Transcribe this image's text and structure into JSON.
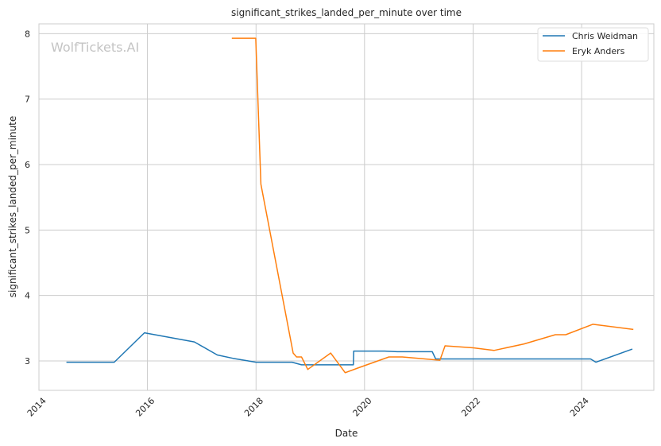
{
  "chart_data": {
    "type": "line",
    "title": "significant_strikes_landed_per_minute over time",
    "xlabel": "Date",
    "ylabel": "significant_strikes_landed_per_minute",
    "watermark": "WolfTickets.AI",
    "xlim": [
      "2014-01-01",
      "2025-05-01"
    ],
    "ylim": [
      2.55,
      8.15
    ],
    "x_ticks": [
      "2014",
      "2016",
      "2018",
      "2020",
      "2022",
      "2024"
    ],
    "y_ticks": [
      "3",
      "4",
      "5",
      "6",
      "7",
      "8"
    ],
    "grid": true,
    "legend_position": "top-right",
    "series": [
      {
        "name": "Chris Weidman",
        "color": "#1f77b4",
        "points": [
          [
            "2014-07-05",
            2.98
          ],
          [
            "2015-05-23",
            2.98
          ],
          [
            "2015-12-12",
            3.43
          ],
          [
            "2016-11-12",
            3.29
          ],
          [
            "2017-04-15",
            3.09
          ],
          [
            "2017-07-29",
            3.04
          ],
          [
            "2018-01-01",
            2.98
          ],
          [
            "2018-09-01",
            2.98
          ],
          [
            "2018-11-03",
            2.94
          ],
          [
            "2019-10-18",
            2.94
          ],
          [
            "2019-10-20",
            3.15
          ],
          [
            "2020-05-15",
            3.15
          ],
          [
            "2020-08-08",
            3.14
          ],
          [
            "2021-04-01",
            3.14
          ],
          [
            "2021-04-24",
            3.03
          ],
          [
            "2024-03-01",
            3.03
          ],
          [
            "2024-04-06",
            2.98
          ],
          [
            "2024-12-07",
            3.18
          ]
        ]
      },
      {
        "name": "Eryk Anders",
        "color": "#ff7f0e",
        "points": [
          [
            "2017-07-22",
            7.93
          ],
          [
            "2017-12-30",
            7.93
          ],
          [
            "2018-02-03",
            5.7
          ],
          [
            "2018-09-08",
            3.12
          ],
          [
            "2018-10-01",
            3.06
          ],
          [
            "2018-11-03",
            3.06
          ],
          [
            "2018-12-15",
            2.87
          ],
          [
            "2019-05-18",
            3.12
          ],
          [
            "2019-08-24",
            2.82
          ],
          [
            "2019-11-16",
            2.89
          ],
          [
            "2020-06-13",
            3.06
          ],
          [
            "2020-09-12",
            3.06
          ],
          [
            "2021-05-22",
            3.01
          ],
          [
            "2021-06-26",
            3.23
          ],
          [
            "2022-01-01",
            3.2
          ],
          [
            "2022-05-21",
            3.16
          ],
          [
            "2022-12-10",
            3.26
          ],
          [
            "2023-07-08",
            3.4
          ],
          [
            "2023-09-16",
            3.4
          ],
          [
            "2024-03-16",
            3.56
          ],
          [
            "2024-12-14",
            3.48
          ]
        ]
      }
    ]
  }
}
